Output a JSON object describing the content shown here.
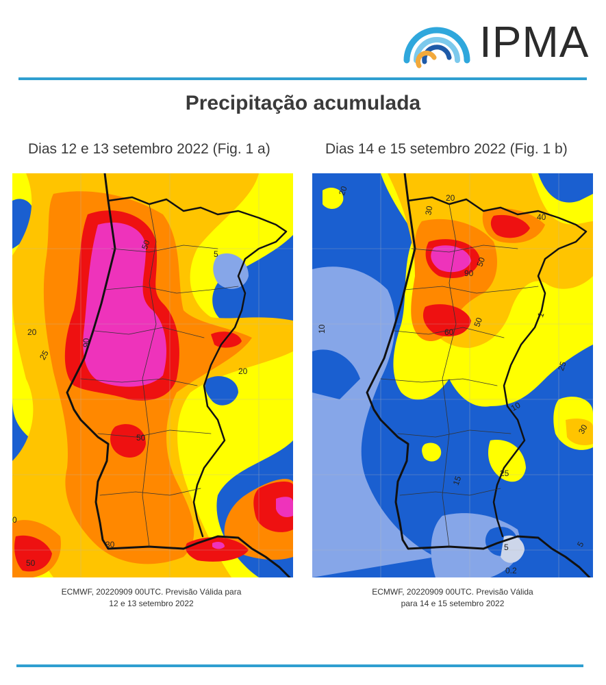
{
  "header": {
    "logo_text": "IPMA"
  },
  "title": "Precipitação acumulada",
  "figures": [
    {
      "subtitle": "Dias 12 e 13 setembro 2022 (Fig. 1 a)",
      "caption_line1": "ECMWF, 20220909 00UTC. Previsão Válida para",
      "caption_line2": "12 e 13 setembro 2022",
      "contour_labels": [
        "90",
        "50",
        "50",
        "25",
        "20",
        "20",
        "50",
        "50",
        "5",
        "30",
        "0"
      ]
    },
    {
      "subtitle": "Dias 14 e 15 setembro 2022 (Fig. 1 b)",
      "caption_line1": "ECMWF, 20220909 00UTC. Previsão Válida",
      "caption_line2": "para 14 e 15 setembro 2022",
      "contour_labels": [
        "20",
        "20",
        "30",
        "40",
        "50",
        "90",
        "60",
        "50",
        "10",
        "25",
        "10",
        "30",
        "15",
        "25",
        "5",
        "0.2",
        "5",
        "1"
      ]
    }
  ],
  "colors": {
    "accent_rule": "#2f9fd0",
    "level_0": "#1a5fd0",
    "level_1": "#86a6e8",
    "level_2": "#ffff00",
    "level_3": "#ffc400",
    "level_4": "#ff8800",
    "level_5": "#ee1111",
    "level_6": "#ee33bb"
  }
}
